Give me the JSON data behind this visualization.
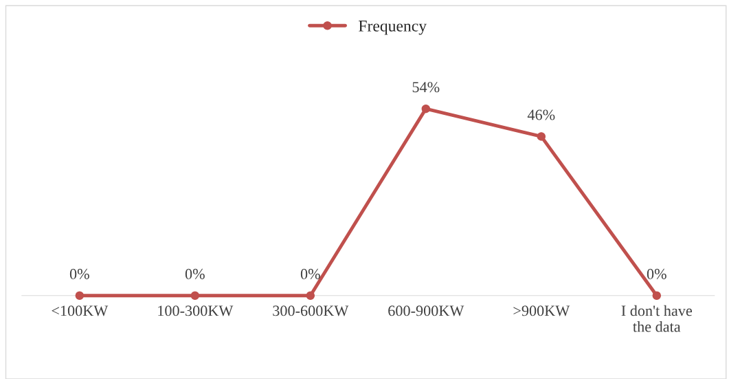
{
  "chart_data": {
    "type": "line",
    "categories": [
      "<100KW",
      "100-300KW",
      "300-600KW",
      "600-900KW",
      ">900KW",
      "I don't have\nthe data"
    ],
    "series": [
      {
        "name": "Frequency",
        "color": "#c0504d",
        "values": [
          0,
          0,
          0,
          54,
          46,
          0
        ],
        "value_labels": [
          "0%",
          "0%",
          "0%",
          "54%",
          "46%",
          "0%"
        ]
      }
    ],
    "marker": "circle",
    "legend": "top",
    "grid": false,
    "tick_labels": "x"
  }
}
